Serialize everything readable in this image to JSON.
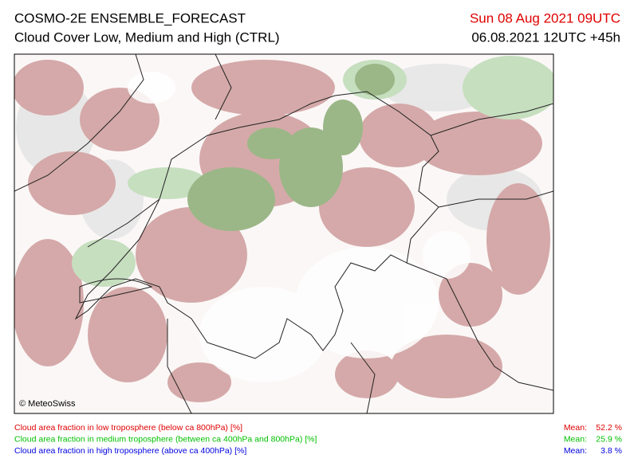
{
  "header": {
    "title": "COSMO-2E ENSEMBLE_FORECAST",
    "subtitle": "Cloud Cover Low, Medium and High (CTRL)",
    "valid_time": "Sun 08 Aug 2021 09UTC",
    "run_time": "06.08.2021 12UTC +45h"
  },
  "map": {
    "copyright": "© MeteoSwiss"
  },
  "legend": [
    {
      "label": "Cloud area fraction in low troposphere (below ca 800hPa) [%]",
      "mean_label": "Mean:",
      "mean": "52.2 %",
      "color": "#e00000"
    },
    {
      "label": "Cloud area fraction in medium troposphere (between ca 400hPa and 800hPa) [%]",
      "mean_label": "Mean:",
      "mean": "25.9 %",
      "color": "#00c000"
    },
    {
      "label": "Cloud area fraction in high troposphere (above ca 400hPa) [%]",
      "mean_label": "Mean:",
      "mean": "3.8 %",
      "color": "#0000e0"
    }
  ]
}
